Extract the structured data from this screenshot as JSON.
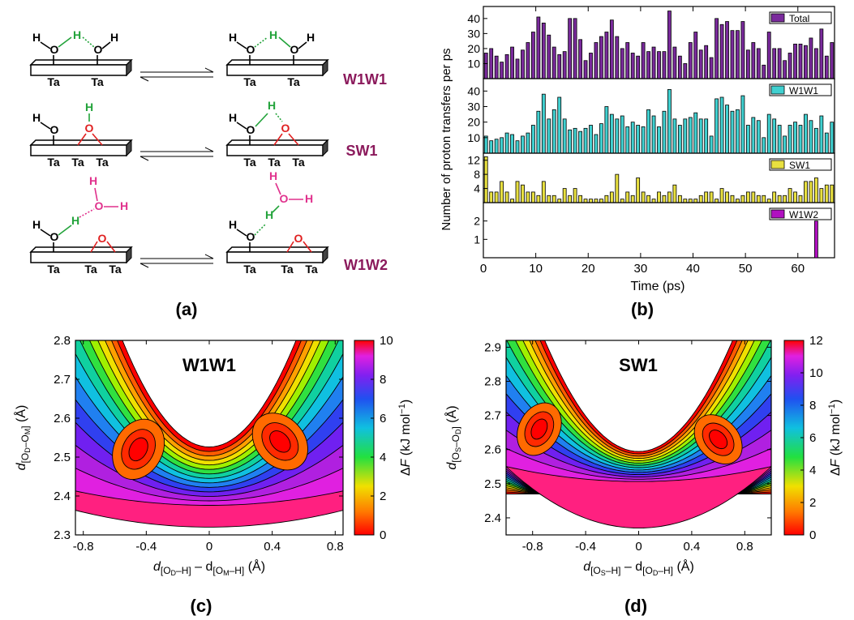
{
  "panel_labels": {
    "a": "(a)",
    "b": "(b)",
    "c": "(c)",
    "d": "(d)"
  },
  "scheme": {
    "row_labels": [
      "W1W1",
      "SW1",
      "W1W2"
    ],
    "colors": {
      "label": "#8b1a5c",
      "green": "#22a33a",
      "red": "#e02020",
      "magenta": "#e0308c",
      "black": "#000000"
    },
    "atoms": {
      "H": "H",
      "O": "O",
      "Ta": "Ta"
    }
  },
  "chart_data": [
    {
      "type": "bar",
      "ylabel": "Number of proton transfers per ps",
      "xlabel": "Time (ps)",
      "xticks": [
        "0",
        "10",
        "20",
        "30",
        "40",
        "50",
        "60"
      ],
      "xlim": [
        0,
        67
      ],
      "series": [
        {
          "name": "Total",
          "color": "#7a2a9c",
          "ylim": [
            0,
            48
          ],
          "yticks": [
            "10",
            "20",
            "30",
            "40"
          ],
          "values": [
            17,
            20,
            15,
            11,
            16,
            21,
            13,
            19,
            24,
            31,
            41,
            37,
            29,
            21,
            16,
            18,
            40,
            40,
            26,
            12,
            17,
            24,
            28,
            31,
            39,
            28,
            20,
            24,
            17,
            15,
            24,
            18,
            21,
            18,
            18,
            45,
            21,
            15,
            10,
            24,
            31,
            19,
            22,
            14,
            40,
            36,
            38,
            32,
            32,
            38,
            19,
            24,
            20,
            9,
            31,
            20,
            20,
            12,
            17,
            23,
            23,
            22,
            27,
            20,
            33,
            15,
            24
          ]
        },
        {
          "name": "W1W1",
          "color": "#40d0d0",
          "ylim": [
            0,
            48
          ],
          "yticks": [
            "10",
            "20",
            "30",
            "40"
          ],
          "values": [
            11,
            8,
            9,
            10,
            13,
            12,
            8,
            11,
            13,
            18,
            27,
            38,
            22,
            28,
            36,
            22,
            15,
            16,
            14,
            16,
            18,
            12,
            19,
            30,
            25,
            22,
            24,
            17,
            20,
            18,
            17,
            28,
            24,
            17,
            27,
            41,
            22,
            18,
            22,
            23,
            26,
            22,
            22,
            11,
            35,
            36,
            31,
            27,
            28,
            37,
            18,
            23,
            21,
            10,
            25,
            22,
            18,
            11,
            18,
            20,
            18,
            25,
            21,
            16,
            24,
            13,
            20
          ]
        },
        {
          "name": "SW1",
          "color": "#e8e040",
          "ylim": [
            0,
            14
          ],
          "yticks": [
            "4",
            "8",
            "12"
          ],
          "values": [
            13,
            3,
            3,
            6,
            3,
            1,
            6,
            5,
            3,
            3,
            2,
            6,
            2,
            2,
            1,
            4,
            2,
            4,
            2,
            1,
            1,
            1,
            1,
            2,
            3,
            8,
            1,
            3,
            2,
            7,
            3,
            2,
            1,
            3,
            2,
            3,
            5,
            2,
            1,
            1,
            1,
            2,
            3,
            3,
            1,
            4,
            3,
            2,
            1,
            2,
            3,
            3,
            2,
            2,
            1,
            3,
            2,
            2,
            4,
            3,
            2,
            6,
            6,
            7,
            4,
            5,
            5
          ]
        },
        {
          "name": "W1W2",
          "color": "#b010c0",
          "ylim": [
            0,
            3
          ],
          "yticks": [
            "1",
            "2"
          ],
          "values": [
            0,
            0,
            0,
            0,
            0,
            0,
            0,
            0,
            0,
            0,
            0,
            0,
            0,
            0,
            0,
            0,
            0,
            0,
            0,
            0,
            0,
            0,
            0,
            0,
            0,
            0,
            0,
            0,
            0,
            0,
            0,
            0,
            0,
            0,
            0,
            0,
            0,
            0,
            0,
            0,
            0,
            0,
            0,
            0,
            0,
            0,
            0,
            0,
            0,
            0,
            0,
            0,
            0,
            0,
            0,
            0,
            0,
            0,
            0,
            0,
            0,
            0,
            0,
            2,
            0,
            0,
            0
          ]
        }
      ]
    },
    {
      "type": "heatmap",
      "title": "W1W1",
      "xlabel_main": "d",
      "xlabel_sub1": "[O",
      "xlabel_sub1b": "D",
      "xlabel_sub1c": "–H]",
      "xlabel_minus": " – d",
      "xlabel_sub2": "[O",
      "xlabel_sub2b": "M",
      "xlabel_sub2c": "–H]",
      "xlabel_unit": " (Å)",
      "ylabel_main": "d",
      "ylabel_sub": "[O",
      "ylabel_subb": "D",
      "ylabel_subc": "–O",
      "ylabel_subd": "M",
      "ylabel_sube": "]",
      "ylabel_unit": " (Å)",
      "xticks": [
        "-0.8",
        "-0.4",
        "0",
        "0.4",
        "0.8"
      ],
      "yticks": [
        "2.3",
        "2.4",
        "2.5",
        "2.6",
        "2.7",
        "2.8"
      ],
      "xlim": [
        -0.85,
        0.85
      ],
      "ylim": [
        2.3,
        2.8
      ],
      "minima": [
        [
          -0.45,
          2.52
        ],
        [
          0.45,
          2.54
        ]
      ],
      "colorbar": {
        "label": "ΔF (kJ mol⁻¹)",
        "label_main": "Δ",
        "label_var": "F",
        "label_unit": " (kJ mol",
        "label_exp": "−1",
        "label_close": ")",
        "ticks": [
          "0",
          "2",
          "4",
          "6",
          "8",
          "10"
        ],
        "range": [
          0,
          10
        ]
      }
    },
    {
      "type": "heatmap",
      "title": "SW1",
      "xlabel_main": "d",
      "xlabel_sub1": "[O",
      "xlabel_sub1b": "S",
      "xlabel_sub1c": "–H]",
      "xlabel_minus": " – d",
      "xlabel_sub2": "[O",
      "xlabel_sub2b": "D",
      "xlabel_sub2c": "–H]",
      "xlabel_unit": " (Å)",
      "ylabel_main": "d",
      "ylabel_sub": "[O",
      "ylabel_subb": "S",
      "ylabel_subc": "–O",
      "ylabel_subd": "D",
      "ylabel_sube": "]",
      "ylabel_unit": " (Å)",
      "xticks": [
        "-0.8",
        "-0.4",
        "0",
        "0.4",
        "0.8"
      ],
      "yticks": [
        "2.4",
        "2.5",
        "2.6",
        "2.7",
        "2.8",
        "2.9"
      ],
      "xlim": [
        -1.0,
        1.0
      ],
      "ylim": [
        2.35,
        2.92
      ],
      "minima": [
        [
          -0.75,
          2.66
        ],
        [
          0.6,
          2.63
        ]
      ],
      "colorbar": {
        "label": "ΔF (kJ mol⁻¹)",
        "label_main": "Δ",
        "label_var": "F",
        "label_unit": " (kJ mol",
        "label_exp": "−1",
        "label_close": ")",
        "ticks": [
          "0",
          "2",
          "4",
          "6",
          "8",
          "10",
          "12"
        ],
        "range": [
          0,
          12
        ]
      }
    }
  ]
}
